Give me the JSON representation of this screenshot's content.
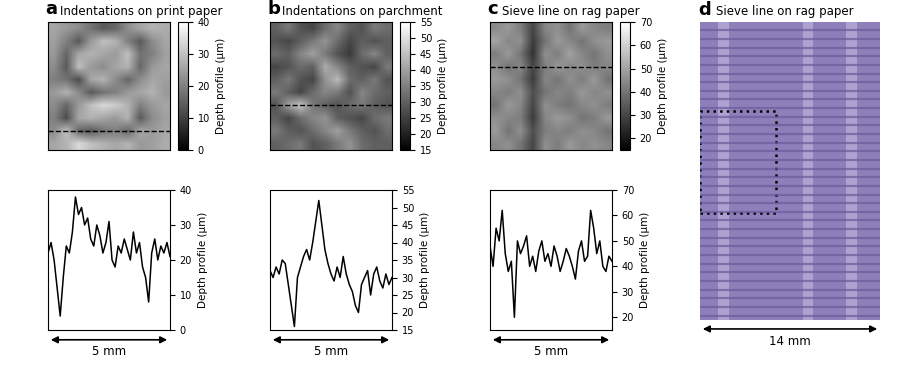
{
  "chart_data": [
    {
      "type": "heatmap",
      "label": "a",
      "title": "Indentations on print paper",
      "colorbar_label": "Depth profile (µm)",
      "clim": [
        0,
        40
      ],
      "cticks": [
        0,
        10,
        20,
        30,
        40
      ],
      "profile_row": 8,
      "tick_labels": false,
      "cells": [
        [
          26,
          24,
          22,
          18,
          14,
          16,
          22,
          26,
          28,
          27
        ],
        [
          25,
          20,
          14,
          24,
          30,
          28,
          20,
          14,
          22,
          26
        ],
        [
          24,
          16,
          26,
          28,
          26,
          24,
          30,
          18,
          20,
          25
        ],
        [
          22,
          14,
          30,
          24,
          22,
          26,
          28,
          16,
          24,
          26
        ],
        [
          20,
          18,
          12,
          26,
          28,
          22,
          16,
          22,
          26,
          25
        ],
        [
          24,
          28,
          22,
          14,
          18,
          20,
          24,
          26,
          28,
          24
        ],
        [
          22,
          16,
          24,
          30,
          34,
          32,
          28,
          20,
          24,
          26
        ],
        [
          20,
          12,
          26,
          28,
          26,
          24,
          28,
          14,
          22,
          25
        ],
        [
          22,
          30,
          16,
          14,
          18,
          20,
          16,
          26,
          24,
          26
        ],
        [
          26,
          28,
          34,
          30,
          28,
          26,
          28,
          24,
          25,
          27
        ]
      ]
    },
    {
      "type": "line",
      "ylabel": "Depth profile (µm)",
      "scale_label": "5 mm",
      "color": "#000000",
      "xlim": [
        0,
        5
      ],
      "ylim": [
        0,
        40
      ],
      "yticks": [
        0,
        10,
        20,
        30,
        40
      ],
      "tick_labels": "y",
      "x": [
        0,
        0.125,
        0.25,
        0.375,
        0.5,
        0.625,
        0.75,
        0.875,
        1,
        1.125,
        1.25,
        1.375,
        1.5,
        1.625,
        1.75,
        1.875,
        2,
        2.125,
        2.25,
        2.375,
        2.5,
        2.625,
        2.75,
        2.875,
        3,
        3.125,
        3.25,
        3.375,
        3.5,
        3.625,
        3.75,
        3.875,
        4,
        4.125,
        4.25,
        4.375,
        4.5,
        4.625,
        4.75,
        4.875,
        5
      ],
      "values": [
        22,
        25,
        20,
        12,
        4,
        15,
        24,
        22,
        28,
        38,
        33,
        35,
        30,
        32,
        26,
        24,
        30,
        27,
        22,
        25,
        31,
        20,
        18,
        24,
        22,
        26,
        23,
        20,
        28,
        22,
        25,
        18,
        15,
        8,
        22,
        26,
        20,
        24,
        22,
        25,
        21
      ]
    },
    {
      "type": "heatmap",
      "label": "b",
      "title": "Indentations on parchment",
      "colorbar_label": "Depth profile (µm)",
      "clim": [
        15,
        55
      ],
      "cticks": [
        15,
        20,
        25,
        30,
        35,
        40,
        45,
        50,
        55
      ],
      "profile_row": 6,
      "tick_labels": false,
      "cells": [
        [
          30,
          34,
          28,
          26,
          32,
          36,
          30,
          28,
          34,
          32
        ],
        [
          28,
          26,
          30,
          34,
          38,
          32,
          26,
          30,
          28,
          30
        ],
        [
          32,
          30,
          36,
          40,
          34,
          28,
          24,
          32,
          36,
          30
        ],
        [
          26,
          28,
          32,
          30,
          42,
          36,
          30,
          28,
          26,
          34
        ],
        [
          30,
          34,
          28,
          26,
          38,
          44,
          32,
          30,
          34,
          28
        ],
        [
          34,
          30,
          26,
          32,
          36,
          34,
          28,
          36,
          32,
          30
        ],
        [
          28,
          40,
          46,
          34,
          30,
          28,
          32,
          34,
          30,
          28
        ],
        [
          30,
          26,
          32,
          36,
          38,
          30,
          28,
          26,
          32,
          34
        ],
        [
          34,
          30,
          28,
          32,
          36,
          40,
          34,
          30,
          28,
          32
        ],
        [
          30,
          32,
          34,
          28,
          30,
          34,
          38,
          32,
          30,
          30
        ]
      ]
    },
    {
      "type": "line",
      "ylabel": "Depth profile (µm)",
      "scale_label": "5 mm",
      "color": "#000000",
      "xlim": [
        0,
        5
      ],
      "ylim": [
        15,
        55
      ],
      "yticks": [
        15,
        20,
        25,
        30,
        35,
        40,
        45,
        50,
        55
      ],
      "tick_labels": "y",
      "x": [
        0,
        0.125,
        0.25,
        0.375,
        0.5,
        0.625,
        0.75,
        0.875,
        1,
        1.125,
        1.25,
        1.375,
        1.5,
        1.625,
        1.75,
        1.875,
        2,
        2.125,
        2.25,
        2.375,
        2.5,
        2.625,
        2.75,
        2.875,
        3,
        3.125,
        3.25,
        3.375,
        3.5,
        3.625,
        3.75,
        3.875,
        4,
        4.125,
        4.25,
        4.375,
        4.5,
        4.625,
        4.75,
        4.875,
        5
      ],
      "values": [
        32,
        30,
        33,
        31,
        35,
        34,
        28,
        22,
        16,
        30,
        33,
        36,
        38,
        35,
        40,
        46,
        52,
        45,
        38,
        34,
        31,
        29,
        33,
        30,
        36,
        31,
        28,
        26,
        22,
        20,
        28,
        30,
        32,
        25,
        31,
        33,
        29,
        27,
        31,
        28,
        30
      ]
    },
    {
      "type": "heatmap",
      "label": "c",
      "title": "Sieve line on rag paper",
      "colorbar_label": "Depth profile (µm)",
      "clim": [
        15,
        70
      ],
      "cticks": [
        20,
        30,
        40,
        50,
        60,
        70
      ],
      "profile_row": 3,
      "tick_labels": false,
      "cells": [
        [
          45,
          48,
          42,
          30,
          44,
          46,
          40,
          48,
          44,
          42
        ],
        [
          50,
          44,
          46,
          28,
          40,
          48,
          44,
          40,
          46,
          48
        ],
        [
          42,
          48,
          40,
          26,
          46,
          42,
          50,
          44,
          40,
          46
        ],
        [
          46,
          40,
          44,
          30,
          42,
          48,
          44,
          46,
          42,
          44
        ],
        [
          48,
          46,
          40,
          28,
          44,
          40,
          46,
          42,
          48,
          40
        ],
        [
          44,
          42,
          46,
          32,
          40,
          44,
          42,
          48,
          44,
          46
        ],
        [
          40,
          48,
          44,
          30,
          46,
          42,
          40,
          44,
          46,
          42
        ],
        [
          46,
          44,
          42,
          28,
          44,
          48,
          46,
          40,
          42,
          48
        ],
        [
          48,
          40,
          46,
          32,
          42,
          44,
          42,
          46,
          44,
          40
        ],
        [
          44,
          46,
          40,
          30,
          46,
          42,
          48,
          44,
          46,
          44
        ]
      ]
    },
    {
      "type": "line",
      "ylabel": "Depth profile (µm)",
      "scale_label": "5 mm",
      "color": "#000000",
      "xlim": [
        0,
        5
      ],
      "ylim": [
        15,
        70
      ],
      "yticks": [
        20,
        30,
        40,
        50,
        60,
        70
      ],
      "tick_labels": "y",
      "x": [
        0,
        0.125,
        0.25,
        0.375,
        0.5,
        0.625,
        0.75,
        0.875,
        1,
        1.125,
        1.25,
        1.375,
        1.5,
        1.625,
        1.75,
        1.875,
        2,
        2.125,
        2.25,
        2.375,
        2.5,
        2.625,
        2.75,
        2.875,
        3,
        3.125,
        3.25,
        3.375,
        3.5,
        3.625,
        3.75,
        3.875,
        4,
        4.125,
        4.25,
        4.375,
        4.5,
        4.625,
        4.75,
        4.875,
        5
      ],
      "values": [
        48,
        40,
        55,
        50,
        62,
        45,
        38,
        42,
        20,
        50,
        45,
        48,
        52,
        40,
        44,
        38,
        46,
        50,
        42,
        45,
        40,
        48,
        44,
        38,
        42,
        47,
        44,
        40,
        35,
        46,
        50,
        42,
        44,
        62,
        55,
        45,
        50,
        40,
        38,
        44,
        42
      ]
    },
    {
      "type": "image",
      "label": "d",
      "title": "Sieve line on rag paper",
      "scale_label": "14 mm"
    }
  ]
}
